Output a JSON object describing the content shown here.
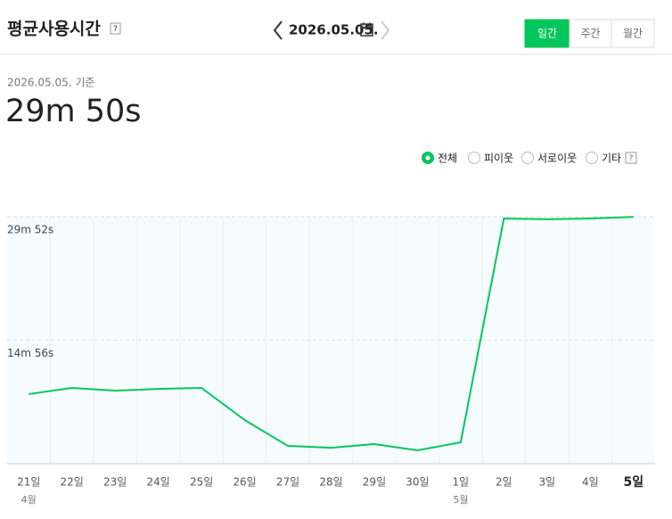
{
  "header": {
    "title": "평균사용시간",
    "help": "?",
    "date": "2026.05.05.",
    "tabs": [
      {
        "label": "일간",
        "active": true
      },
      {
        "label": "주간",
        "active": false
      },
      {
        "label": "월간",
        "active": false
      }
    ]
  },
  "summary": {
    "basis": "2026.05.05. 기준",
    "value": "29m 50s"
  },
  "filters": {
    "options": [
      {
        "label": "전체",
        "selected": true
      },
      {
        "label": "피이웃",
        "selected": false
      },
      {
        "label": "서로이웃",
        "selected": false
      },
      {
        "label": "기타",
        "selected": false
      }
    ],
    "help": "?"
  },
  "chart_data": {
    "type": "line",
    "color": "#03c75a",
    "categories": [
      "21일",
      "22일",
      "23일",
      "24일",
      "25일",
      "26일",
      "27일",
      "28일",
      "29일",
      "30일",
      "1일",
      "2일",
      "3일",
      "4일",
      "5일"
    ],
    "months": [
      "4월",
      null,
      null,
      null,
      null,
      null,
      null,
      null,
      null,
      null,
      "5월",
      null,
      null,
      null,
      null
    ],
    "values": [
      505,
      550,
      530,
      543,
      550,
      317,
      129,
      116,
      142,
      97,
      155,
      1779,
      1773,
      1779,
      1790
    ],
    "ylim": [
      0,
      1792
    ],
    "yticks": [
      {
        "value": 896,
        "label": "14m 56s"
      },
      {
        "value": 1792,
        "label": "29m 52s"
      }
    ],
    "grid": true
  }
}
